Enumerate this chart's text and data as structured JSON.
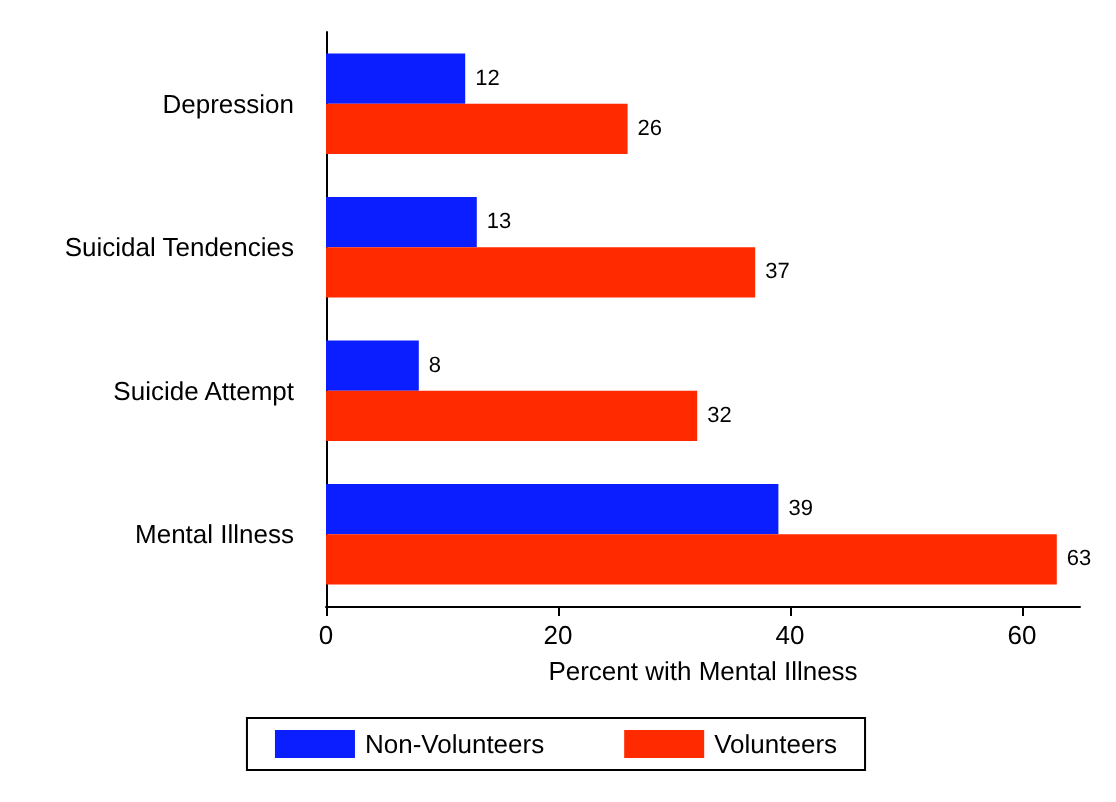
{
  "chart_data": {
    "type": "bar",
    "orientation": "horizontal",
    "categories": [
      "Depression",
      "Suicidal Tendencies",
      "Suicide Attempt",
      "Mental Illness"
    ],
    "series": [
      {
        "name": "Non-Volunteers",
        "color": "#0a1eff",
        "values": [
          12,
          13,
          8,
          39
        ]
      },
      {
        "name": "Volunteers",
        "color": "#ff2a00",
        "values": [
          26,
          37,
          32,
          63
        ]
      }
    ],
    "xlabel": "Percent with Mental Illness",
    "xlim": [
      0,
      65
    ],
    "xticks": [
      0,
      20,
      40,
      60
    ],
    "data_labels": true,
    "grid": false,
    "legend": "bottom"
  }
}
